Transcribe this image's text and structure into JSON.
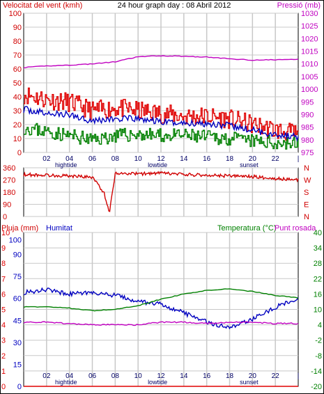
{
  "title": "24 hour graph day : 08 Abril 2012",
  "colors": {
    "wind": "#e00000",
    "wind_secondary": "#008000",
    "wind_avg": "#0000c0",
    "pressure": "#c000c0",
    "direction": "#d00000",
    "rain": "#e00000",
    "humidity": "#0000c0",
    "temperature": "#008000",
    "dewpoint": "#c000c0",
    "grid": "#c8c8c8",
    "axis_text_left": "#d00000",
    "axis_text_right": "#c000c0"
  },
  "x_axis": {
    "ticks": [
      "02",
      "04",
      "06",
      "08",
      "10",
      "12",
      "14",
      "16",
      "18",
      "20",
      "22",
      "|"
    ],
    "sublabels": [
      "hightide",
      "lowtide",
      "sunset"
    ]
  },
  "chart_data": [
    {
      "type": "line",
      "title": "24 hour graph day : 08 Abril 2012",
      "left_axis_label": "Velocitat del vent (kmh)",
      "right_axis_label": "Pressió (mb)",
      "left_ticks": [
        "100",
        "90",
        "80",
        "70",
        "60",
        "50",
        "40",
        "30",
        "20",
        "10",
        "0"
      ],
      "right_ticks": [
        "1030",
        "1025",
        "1020",
        "1015",
        "1010",
        "1005",
        "1000",
        "995",
        "990",
        "985",
        "980",
        "975"
      ],
      "ylim_left": [
        0,
        100
      ],
      "ylim_right": [
        975,
        1030
      ],
      "x_hours": [
        0,
        2,
        4,
        6,
        8,
        10,
        12,
        14,
        16,
        18,
        20,
        22,
        24
      ],
      "series": [
        {
          "axis": "left",
          "color_key": "wind",
          "values": [
            42,
            38,
            36,
            30,
            32,
            30,
            28,
            26,
            26,
            24,
            20,
            16,
            13
          ]
        },
        {
          "axis": "left",
          "color_key": "wind_avg",
          "values": [
            31,
            28,
            27,
            23,
            24,
            24,
            22,
            21,
            21,
            19,
            16,
            13,
            11
          ]
        },
        {
          "axis": "left",
          "color_key": "wind_secondary",
          "values": [
            18,
            15,
            12,
            9,
            12,
            13,
            12,
            12,
            11,
            10,
            8,
            7,
            6
          ]
        },
        {
          "axis": "right",
          "color_key": "pressure",
          "values": [
            1008.5,
            1009.2,
            1009.5,
            1010.0,
            1010.8,
            1012.8,
            1013.2,
            1013.0,
            1012.7,
            1012.0,
            1011.5,
            1011.6,
            1011.8
          ]
        }
      ]
    },
    {
      "type": "line",
      "left_ticks": [
        "360",
        "270",
        "180",
        "90",
        "0"
      ],
      "right_ticks": [
        "N",
        "W",
        "S",
        "E",
        "N"
      ],
      "ylim": [
        0,
        360
      ],
      "x_hours": [
        0,
        2,
        4,
        6,
        7,
        7.5,
        8,
        10,
        12,
        14,
        16,
        18,
        20,
        22,
        24
      ],
      "series": [
        {
          "color_key": "direction",
          "values": [
            310,
            305,
            300,
            290,
            180,
            30,
            320,
            315,
            320,
            310,
            305,
            300,
            295,
            280,
            270
          ]
        }
      ]
    },
    {
      "type": "line",
      "left_axis_label": "Pluja (mm)",
      "left_axis_label_2": "Humitat",
      "right_axis_label": "Temperatura (°C)",
      "right_axis_label_2": "Punt rosada",
      "rain_ticks": [
        "10",
        "9",
        "8",
        "7",
        "6",
        "5",
        "4",
        "3",
        "2",
        "1",
        "0"
      ],
      "humidity_ticks": [
        "100",
        "90",
        "75",
        "60",
        "45",
        "30",
        "15",
        "0"
      ],
      "temp_ticks": [
        "40",
        "34",
        "28",
        "22",
        "16",
        "10",
        "4",
        "-2",
        "-8",
        "-14",
        "-20"
      ],
      "ylim_rain": [
        0,
        10
      ],
      "ylim_humidity": [
        0,
        105
      ],
      "ylim_temp": [
        -20,
        40
      ],
      "x_hours": [
        0,
        2,
        4,
        6,
        8,
        10,
        12,
        14,
        16,
        18,
        20,
        22,
        24
      ],
      "series": [
        {
          "axis": "rain",
          "color_key": "rain",
          "values": [
            0,
            0,
            0,
            0,
            0,
            0,
            0,
            0,
            0,
            0,
            0,
            0,
            0
          ]
        },
        {
          "axis": "humidity",
          "color_key": "humidity",
          "values": [
            64,
            66,
            63,
            64,
            62,
            58,
            56,
            50,
            44,
            40,
            46,
            54,
            60
          ]
        },
        {
          "axis": "temp",
          "color_key": "temperature",
          "values": [
            11,
            11,
            10.5,
            9.5,
            10,
            11.5,
            14,
            16,
            17.5,
            18,
            17,
            15.5,
            14.5
          ]
        },
        {
          "axis": "temp",
          "color_key": "dewpoint",
          "values": [
            5,
            5,
            4.5,
            4,
            4,
            4,
            5,
            5,
            4.5,
            5,
            5,
            4.5,
            4.5
          ]
        }
      ]
    }
  ]
}
